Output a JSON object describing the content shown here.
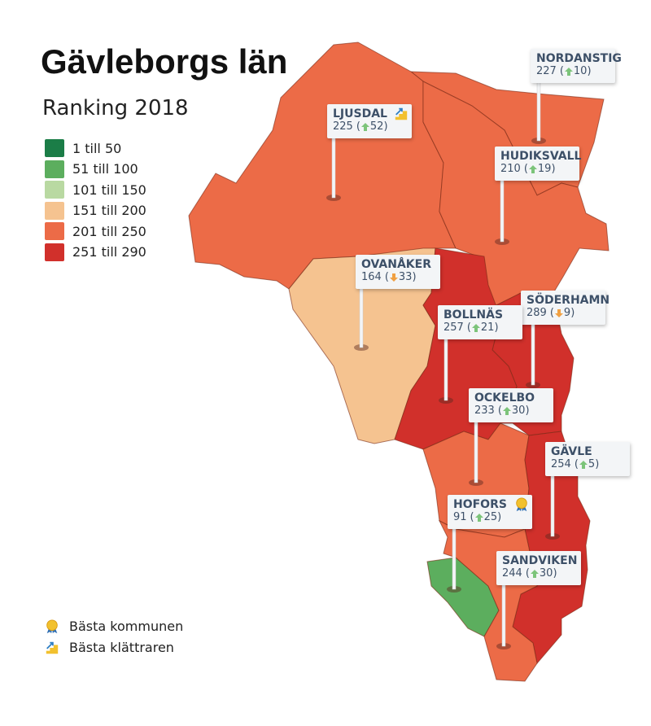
{
  "title": "Gävleborgs län",
  "subtitle": "Ranking 2018",
  "legend": [
    {
      "label": "1 till 50",
      "color": "#1b7d47"
    },
    {
      "label": "51 till 100",
      "color": "#5cae5e"
    },
    {
      "label": "101 till 150",
      "color": "#b9d9a2"
    },
    {
      "label": "151 till 200",
      "color": "#f5c390"
    },
    {
      "label": "201 till 250",
      "color": "#ec6b47"
    },
    {
      "label": "251 till 290",
      "color": "#d1302b"
    }
  ],
  "municipalities": [
    {
      "name": "NORDANSTIG",
      "rank": 227,
      "change": 10,
      "direction": "up",
      "color": "#ec6b47"
    },
    {
      "name": "LJUSDAL",
      "rank": 225,
      "change": 52,
      "direction": "up",
      "color": "#ec6b47",
      "badge": "climber"
    },
    {
      "name": "HUDIKSVALL",
      "rank": 210,
      "change": 19,
      "direction": "up",
      "color": "#ec6b47"
    },
    {
      "name": "OVANÅKER",
      "rank": 164,
      "change": 33,
      "direction": "down",
      "color": "#f5c390"
    },
    {
      "name": "SÖDERHAMN",
      "rank": 289,
      "change": 9,
      "direction": "down",
      "color": "#d1302b"
    },
    {
      "name": "BOLLNÄS",
      "rank": 257,
      "change": 21,
      "direction": "up",
      "color": "#d1302b"
    },
    {
      "name": "OCKELBO",
      "rank": 233,
      "change": 30,
      "direction": "up",
      "color": "#ec6b47"
    },
    {
      "name": "GÄVLE",
      "rank": 254,
      "change": 5,
      "direction": "up",
      "color": "#d1302b"
    },
    {
      "name": "HOFORS",
      "rank": 91,
      "change": 25,
      "direction": "up",
      "color": "#5cae5e",
      "badge": "best"
    },
    {
      "name": "SANDVIKEN",
      "rank": 244,
      "change": 30,
      "direction": "up",
      "color": "#ec6b47"
    }
  ],
  "badges": [
    {
      "type": "best",
      "label": "Bästa kommunen"
    },
    {
      "type": "climber",
      "label": "Bästa klättraren"
    }
  ]
}
